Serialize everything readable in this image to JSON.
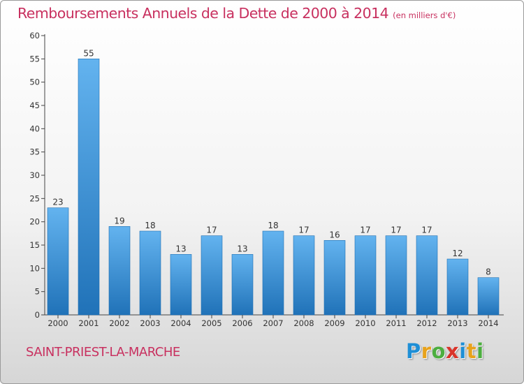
{
  "title": "Remboursements Annuels de la Dette de 2000 à 2014",
  "unit": "(en milliers d'€)",
  "commune": "SAINT-PRIEST-LA-MARCHE",
  "logo": {
    "letters": [
      "P",
      "r",
      "o",
      "x",
      "i",
      "t",
      "i"
    ],
    "colors": [
      "#1f8fd6",
      "#e8a21b",
      "#4cae3f",
      "#d9342a",
      "#1f8fd6",
      "#e8a21b",
      "#4cae3f"
    ]
  },
  "colors": {
    "title": "#c8305f",
    "bar_top": "#63b3ef",
    "bar_bottom": "#2072b8"
  },
  "chart_data": {
    "type": "bar",
    "categories": [
      "2000",
      "2001",
      "2002",
      "2003",
      "2004",
      "2005",
      "2006",
      "2007",
      "2008",
      "2009",
      "2010",
      "2011",
      "2012",
      "2013",
      "2014"
    ],
    "values": [
      23,
      55,
      19,
      18,
      13,
      17,
      13,
      18,
      17,
      16,
      17,
      17,
      17,
      12,
      8
    ],
    "data_labels": [
      "23",
      "55",
      "19",
      "18",
      "13",
      "17",
      "13",
      "18",
      "17",
      "16",
      "17",
      "17",
      "17",
      "12",
      "8"
    ],
    "yticks": [
      "0",
      "5",
      "10",
      "15",
      "20",
      "25",
      "30",
      "35",
      "40",
      "45",
      "50",
      "55",
      "60"
    ],
    "ylim": [
      0,
      60
    ],
    "grid": false,
    "legend": "none"
  }
}
